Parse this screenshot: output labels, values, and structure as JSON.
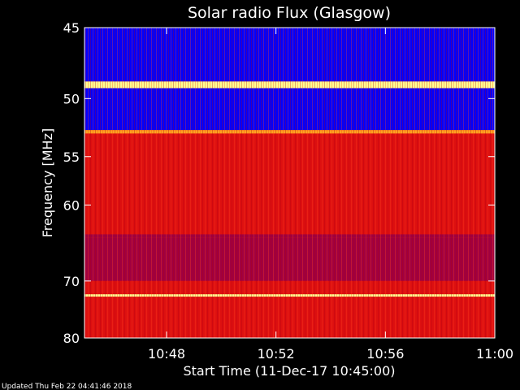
{
  "chart_data": {
    "type": "heatmap",
    "title": "Solar radio Flux (Glasgow)",
    "xlabel": "Start Time (11-Dec-17 10:45:00)",
    "ylabel": "Frequency [MHz]",
    "x_ticks": [
      "10:48",
      "10:52",
      "10:56",
      "11:00"
    ],
    "x_tick_minutes": [
      3,
      7,
      11,
      15
    ],
    "xlim_minutes_after_start": [
      0,
      15
    ],
    "y_ticks": [
      45,
      50,
      55,
      60,
      70,
      80
    ],
    "ylim": [
      45,
      80
    ],
    "y_scale": "reciprocal",
    "colormap": [
      "#000080",
      "#0000ff",
      "#a00040",
      "#dd1010",
      "#ff2a00",
      "#ffa020",
      "#ffff90"
    ],
    "background_color": "#e01e10",
    "bands": [
      {
        "mhz_from": 45.0,
        "mhz_to": 48.7,
        "level": 1
      },
      {
        "mhz_from": 48.7,
        "mhz_to": 49.2,
        "level": 6
      },
      {
        "mhz_from": 49.2,
        "mhz_to": 52.6,
        "level": 1
      },
      {
        "mhz_from": 52.6,
        "mhz_to": 52.9,
        "level": 5
      },
      {
        "mhz_from": 52.9,
        "mhz_to": 63.5,
        "level": 3
      },
      {
        "mhz_from": 63.5,
        "mhz_to": 63.9,
        "level": 2
      },
      {
        "mhz_from": 63.9,
        "mhz_to": 70.0,
        "level": 2
      },
      {
        "mhz_from": 70.0,
        "mhz_to": 72.1,
        "level": 3
      },
      {
        "mhz_from": 72.1,
        "mhz_to": 72.5,
        "level": 6
      },
      {
        "mhz_from": 72.5,
        "mhz_to": 80.0,
        "level": 3
      }
    ]
  },
  "footer": {
    "updated_text": "Updated Thu Feb 22 04:41:46 2018"
  }
}
